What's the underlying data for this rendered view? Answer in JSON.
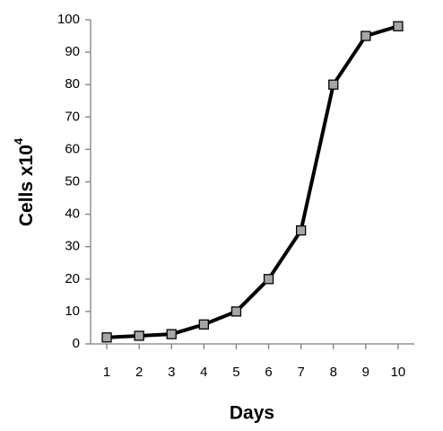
{
  "chart_data": {
    "type": "line",
    "x_label": "Days",
    "y_label": "Cells x10",
    "y_label_exponent": "4",
    "x": [
      1,
      2,
      3,
      4,
      5,
      6,
      7,
      8,
      9,
      10
    ],
    "series": [
      {
        "name": "Cells",
        "color": "#000000",
        "marker_color": "#a6a6a6",
        "values": [
          2,
          2.5,
          3,
          6,
          10,
          20,
          35,
          80,
          95,
          98
        ]
      }
    ],
    "xlim": [
      0.5,
      10.5
    ],
    "xticks": [
      1,
      2,
      3,
      4,
      5,
      6,
      7,
      8,
      9,
      10
    ],
    "ylim": [
      0,
      100
    ],
    "yticks": [
      0,
      10,
      20,
      30,
      40,
      50,
      60,
      70,
      80,
      90,
      100
    ],
    "grid": false,
    "legend": false
  }
}
